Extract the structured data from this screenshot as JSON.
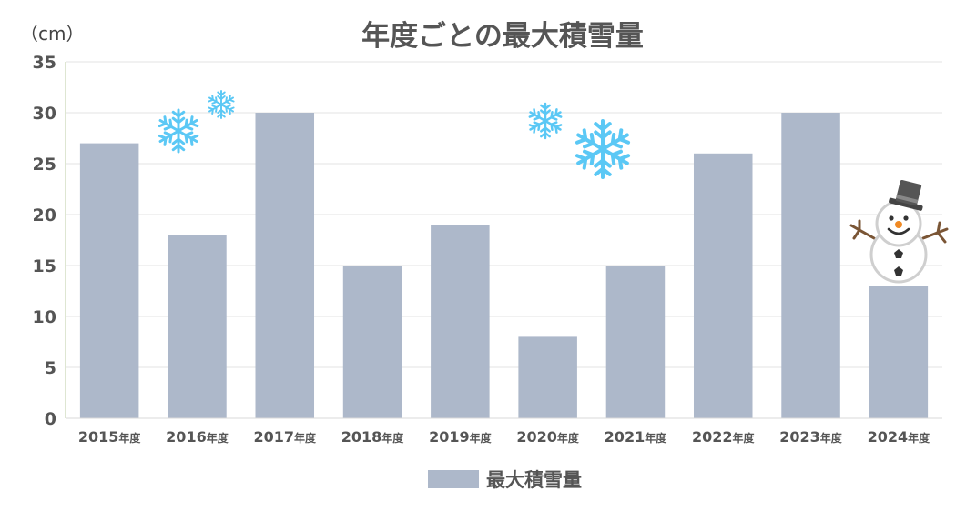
{
  "chart_data": {
    "type": "bar",
    "title": "年度ごとの最大積雪量",
    "unit_label": "（cm）",
    "categories": [
      "2015年度",
      "2016年度",
      "2017年度",
      "2018年度",
      "2019年度",
      "2020年度",
      "2021年度",
      "2022年度",
      "2023年度",
      "2024年度"
    ],
    "series": [
      {
        "name": "最大積雪量",
        "values": [
          27,
          18,
          30,
          15,
          19,
          8,
          15,
          26,
          30,
          13
        ],
        "color": "#adb8ca"
      }
    ],
    "ylim": [
      0,
      35
    ],
    "yticks": [
      0,
      5,
      10,
      15,
      20,
      25,
      30,
      35
    ],
    "grid": true,
    "legend": "bottom-center",
    "decorations": [
      "snowflake-icon",
      "snowflake-icon",
      "snowflake-icon",
      "snowflake-icon",
      "snowman-icon"
    ],
    "colors": {
      "snowflake": "#5bc8f5",
      "text": "#555555",
      "gridline": "#e3e3e3"
    }
  }
}
